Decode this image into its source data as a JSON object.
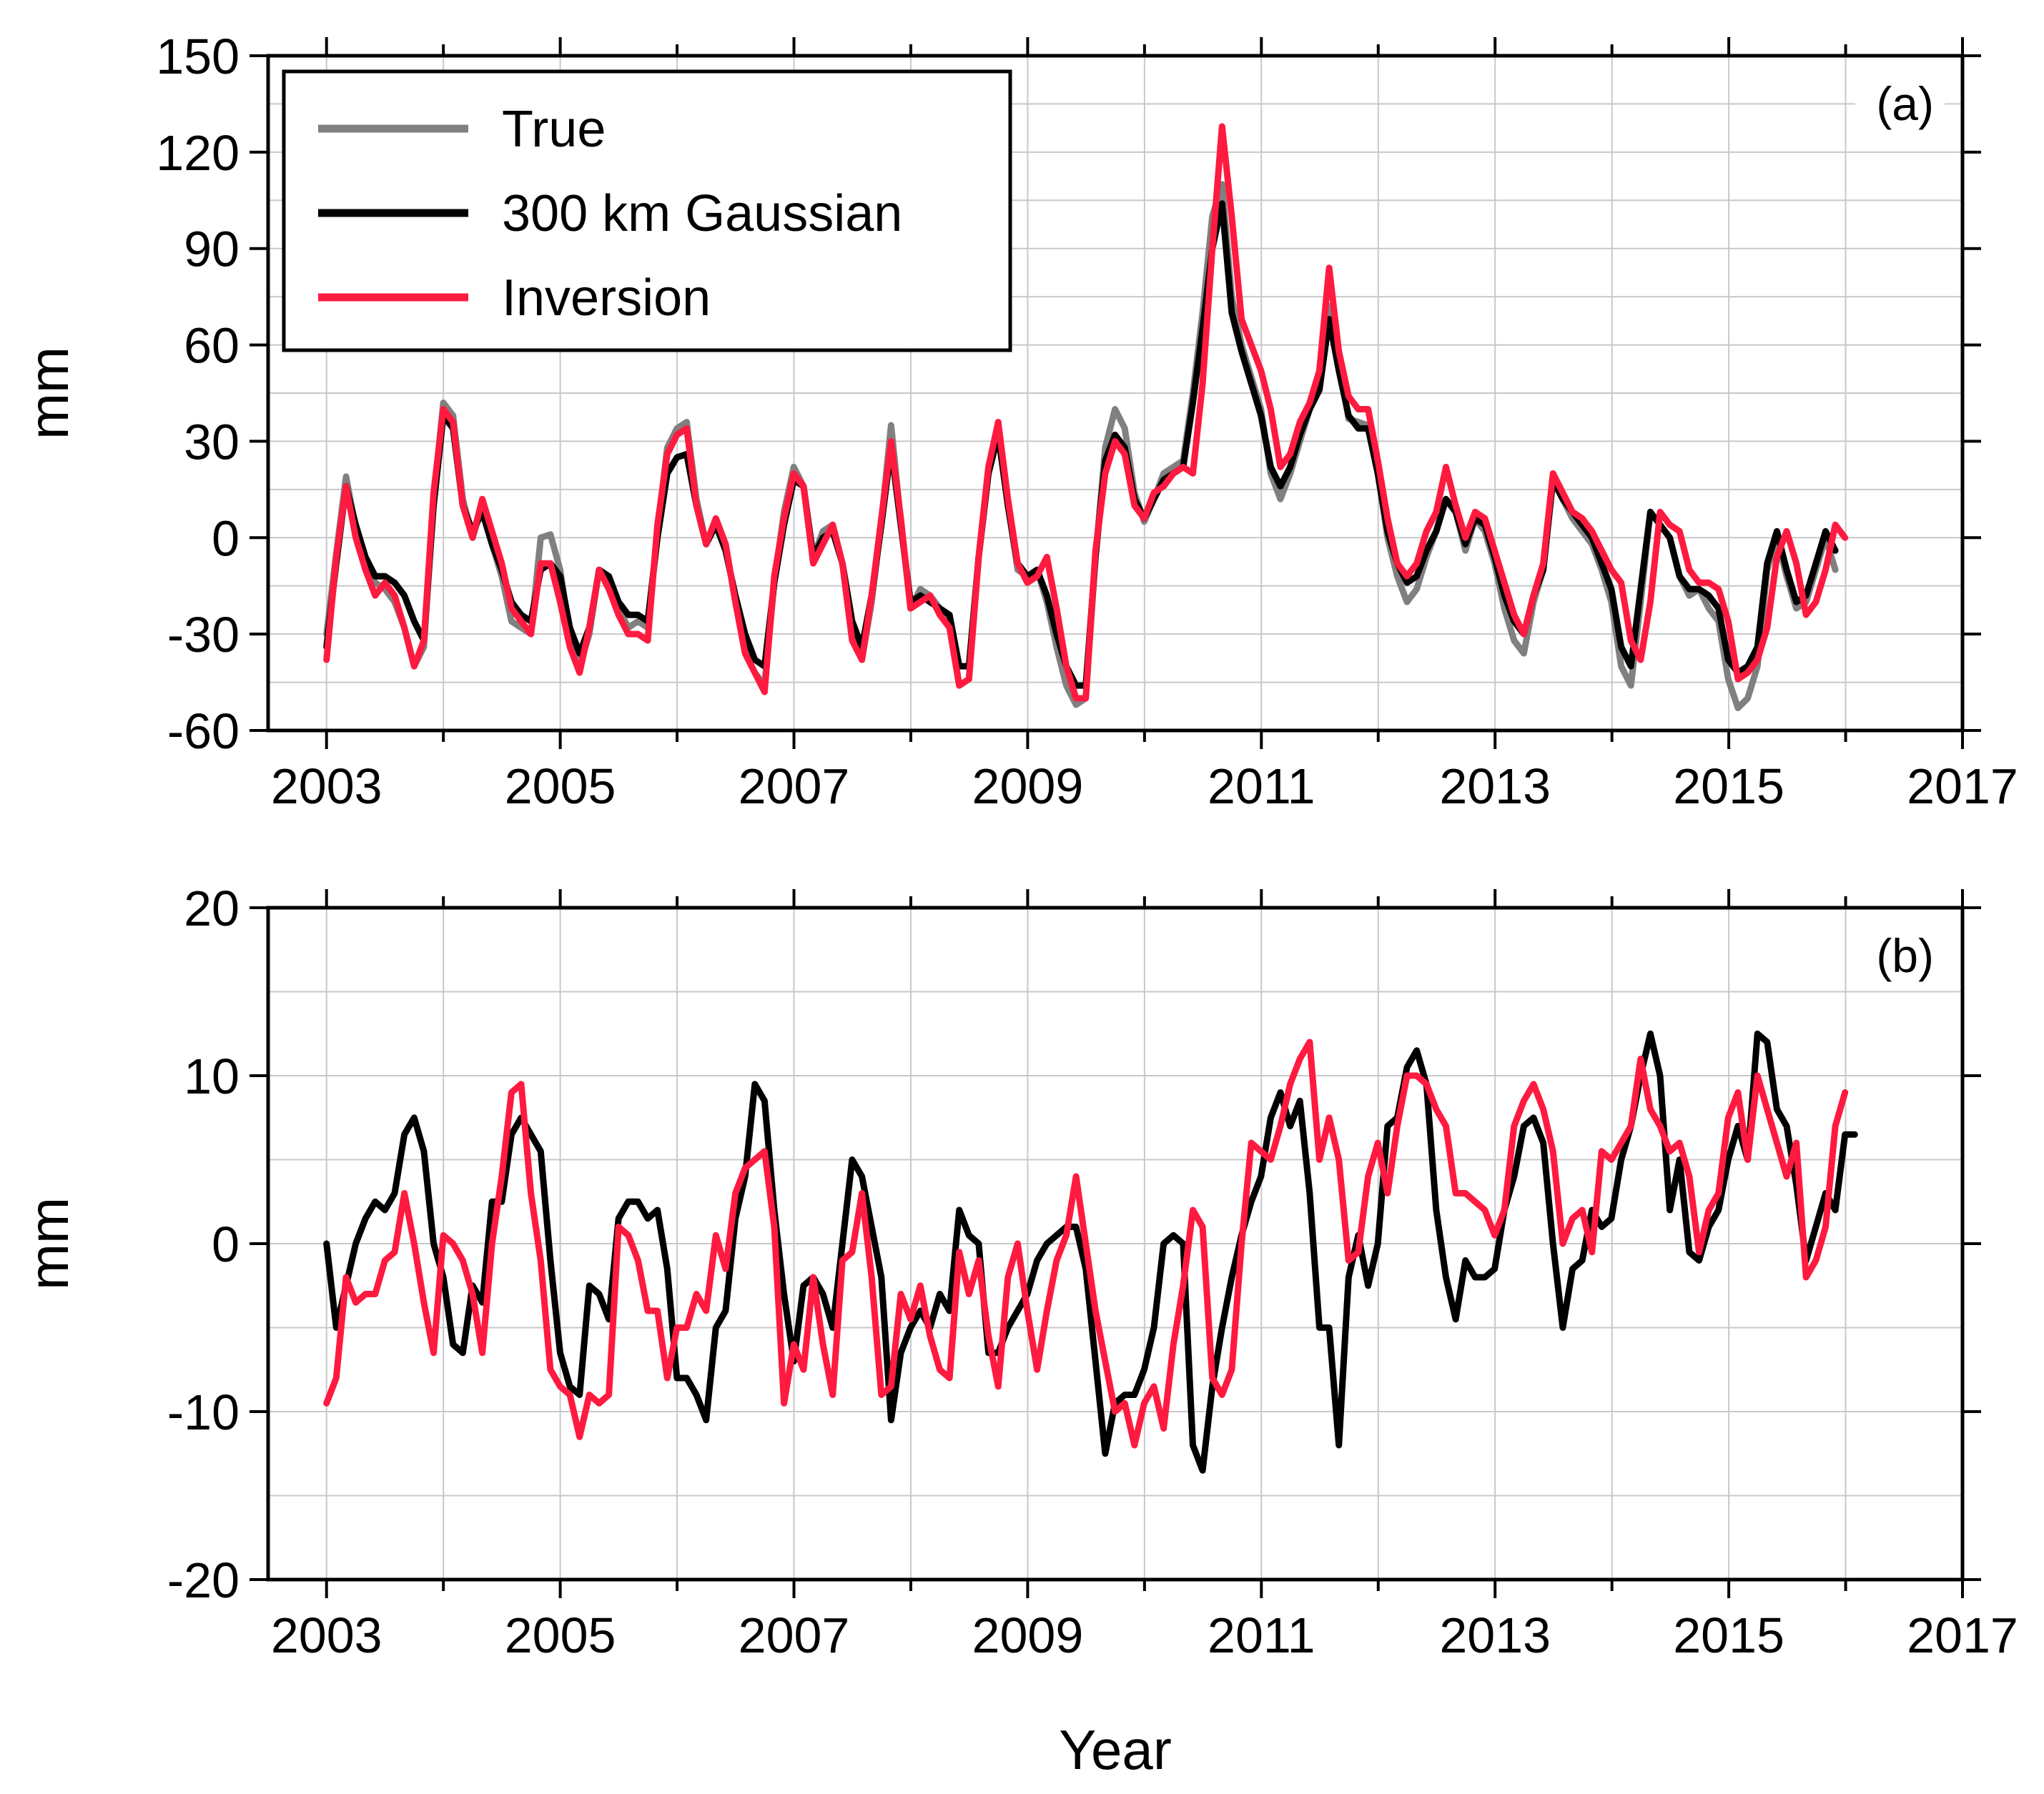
{
  "colors": {
    "true": "#808080",
    "gaussian": "#000000",
    "inversion": "#ff1a40",
    "grid": "#c8c8c8"
  },
  "chart_data": [
    {
      "type": "line",
      "panel_label": "(a)",
      "xlabel": "",
      "ylabel": "mm",
      "xlim": [
        2002.5,
        2017
      ],
      "ylim": [
        -60,
        150
      ],
      "xticks": [
        2003,
        2005,
        2007,
        2009,
        2011,
        2013,
        2015,
        2017
      ],
      "xtick_labels": [
        "2003",
        "2005",
        "2007",
        "2009",
        "2011",
        "2013",
        "2015",
        "2017"
      ],
      "yticks": [
        -60,
        -30,
        0,
        30,
        60,
        90,
        120,
        150
      ],
      "ytick_labels": [
        "-60",
        "-30",
        "0",
        "30",
        "60",
        "90",
        "120",
        "150"
      ],
      "grid": true,
      "legend_position": "top-left",
      "legend": [
        "True",
        "300 km Gaussian",
        "Inversion"
      ],
      "x_start": 2003.0,
      "x_step": 0.0833,
      "series": [
        {
          "name": "True",
          "color_key": "true",
          "values": [
            -30,
            -5,
            19,
            3,
            -8,
            -14,
            -16,
            -20,
            -28,
            -40,
            -34,
            12,
            42,
            38,
            12,
            0,
            10,
            -2,
            -12,
            -26,
            -28,
            -30,
            0,
            1,
            -10,
            -30,
            -40,
            -30,
            -10,
            -14,
            -22,
            -28,
            -26,
            -28,
            2,
            28,
            34,
            36,
            12,
            -2,
            6,
            -2,
            -20,
            -36,
            -42,
            -46,
            -14,
            8,
            22,
            16,
            -6,
            2,
            4,
            -8,
            -30,
            -38,
            -20,
            5,
            35,
            5,
            -22,
            -16,
            -18,
            -22,
            -26,
            -46,
            -44,
            -6,
            22,
            35,
            10,
            -10,
            -12,
            -10,
            -20,
            -34,
            -46,
            -52,
            -50,
            -6,
            28,
            40,
            34,
            14,
            5,
            12,
            20,
            22,
            24,
            45,
            70,
            100,
            110,
            75,
            60,
            50,
            40,
            20,
            12,
            20,
            30,
            40,
            48,
            72,
            55,
            37,
            36,
            35,
            20,
            0,
            -12,
            -20,
            -16,
            -6,
            2,
            12,
            8,
            -4,
            6,
            2,
            -8,
            -22,
            -32,
            -36,
            -20,
            -10,
            18,
            12,
            6,
            2,
            -2,
            -10,
            -20,
            -40,
            -46,
            -20,
            8,
            4,
            0,
            -12,
            -18,
            -16,
            -22,
            -26,
            -44,
            -53,
            -50,
            -40,
            -10,
            0,
            -12,
            -22,
            -20,
            -10,
            0,
            -10
          ]
        },
        {
          "name": "300 km Gaussian",
          "color_key": "gaussian",
          "values": [
            -34,
            -8,
            16,
            4,
            -6,
            -12,
            -12,
            -14,
            -18,
            -26,
            -32,
            10,
            38,
            34,
            10,
            2,
            8,
            -2,
            -10,
            -20,
            -24,
            -26,
            -10,
            -8,
            -12,
            -28,
            -36,
            -28,
            -10,
            -12,
            -20,
            -24,
            -24,
            -26,
            0,
            20,
            25,
            26,
            10,
            -2,
            4,
            -4,
            -18,
            -30,
            -38,
            -40,
            -14,
            4,
            18,
            16,
            -6,
            0,
            2,
            -8,
            -26,
            -34,
            -18,
            4,
            28,
            4,
            -20,
            -18,
            -20,
            -22,
            -24,
            -40,
            -40,
            -6,
            20,
            32,
            10,
            -8,
            -12,
            -10,
            -18,
            -30,
            -40,
            -46,
            -46,
            -6,
            24,
            32,
            28,
            12,
            6,
            12,
            18,
            20,
            22,
            42,
            65,
            90,
            104,
            70,
            58,
            48,
            38,
            22,
            16,
            22,
            32,
            40,
            46,
            68,
            52,
            38,
            34,
            34,
            20,
            2,
            -8,
            -14,
            -12,
            -4,
            2,
            12,
            8,
            -2,
            6,
            4,
            -6,
            -18,
            -26,
            -30,
            -18,
            -10,
            18,
            12,
            8,
            4,
            0,
            -8,
            -16,
            -34,
            -40,
            -16,
            8,
            4,
            0,
            -12,
            -16,
            -16,
            -18,
            -22,
            -38,
            -42,
            -40,
            -34,
            -8,
            2,
            -10,
            -20,
            -18,
            -8,
            2,
            -4
          ]
        },
        {
          "name": "Inversion",
          "color_key": "inversion",
          "values": [
            -38,
            -6,
            16,
            0,
            -10,
            -18,
            -14,
            -18,
            -28,
            -40,
            -32,
            14,
            40,
            36,
            10,
            0,
            12,
            2,
            -8,
            -22,
            -26,
            -30,
            -8,
            -8,
            -20,
            -34,
            -42,
            -28,
            -10,
            -16,
            -24,
            -30,
            -30,
            -32,
            4,
            26,
            32,
            34,
            10,
            -2,
            6,
            -2,
            -20,
            -36,
            -42,
            -48,
            -12,
            6,
            20,
            16,
            -8,
            -2,
            4,
            -8,
            -32,
            -38,
            -18,
            6,
            30,
            6,
            -22,
            -20,
            -18,
            -24,
            -28,
            -46,
            -44,
            -6,
            22,
            36,
            12,
            -8,
            -14,
            -12,
            -6,
            -22,
            -40,
            -50,
            -50,
            -4,
            20,
            30,
            26,
            10,
            6,
            14,
            16,
            20,
            22,
            20,
            48,
            90,
            128,
            100,
            68,
            60,
            52,
            40,
            22,
            26,
            36,
            42,
            52,
            84,
            58,
            44,
            40,
            40,
            24,
            6,
            -8,
            -12,
            -8,
            2,
            8,
            22,
            10,
            0,
            8,
            6,
            -4,
            -14,
            -24,
            -30,
            -18,
            -8,
            20,
            14,
            8,
            6,
            2,
            -4,
            -10,
            -14,
            -32,
            -38,
            -20,
            8,
            4,
            2,
            -10,
            -14,
            -14,
            -16,
            -26,
            -44,
            -42,
            -38,
            -28,
            -6,
            2,
            -8,
            -24,
            -20,
            -10,
            4,
            0
          ]
        }
      ]
    },
    {
      "type": "line",
      "panel_label": "(b)",
      "xlabel": "Year",
      "ylabel": "mm",
      "xlim": [
        2002.5,
        2017
      ],
      "ylim": [
        -20,
        20
      ],
      "xticks": [
        2003,
        2005,
        2007,
        2009,
        2011,
        2013,
        2015,
        2017
      ],
      "xtick_labels": [
        "2003",
        "2005",
        "2007",
        "2009",
        "2011",
        "2013",
        "2015",
        "2017"
      ],
      "yticks": [
        -20,
        -10,
        0,
        10,
        20
      ],
      "ytick_labels": [
        "-20",
        "-10",
        "0",
        "10",
        "20"
      ],
      "grid": true,
      "x_start": 2003.0,
      "x_step": 0.0833,
      "series": [
        {
          "name": "300 km Gaussian",
          "color_key": "gaussian",
          "values": [
            0,
            -5,
            -2.5,
            0,
            1.5,
            2.5,
            2,
            3,
            6.5,
            7.5,
            5.5,
            0,
            -2,
            -6,
            -6.5,
            -2.5,
            -3.5,
            2.5,
            2.5,
            6.5,
            7.5,
            6.5,
            5.5,
            -1,
            -6.5,
            -8.5,
            -9,
            -2.5,
            -3,
            -4.5,
            1.5,
            2.5,
            2.5,
            1.5,
            2,
            -1.5,
            -8,
            -8,
            -9,
            -10.5,
            -5,
            -4,
            1.5,
            4,
            9.5,
            8.5,
            2,
            -3,
            -7,
            -2.5,
            -2,
            -3,
            -5,
            0,
            5,
            4,
            1,
            -2,
            -10.5,
            -6.5,
            -5,
            -4,
            -5,
            -3,
            -4,
            2,
            0.5,
            0,
            -6.5,
            -6.5,
            -5,
            -4,
            -3,
            -1,
            0,
            0.5,
            1,
            1,
            -1.5,
            -7,
            -12.5,
            -9.5,
            -9,
            -9,
            -7.5,
            -5,
            0,
            0.5,
            0,
            -12,
            -13.5,
            -8.5,
            -5,
            -2,
            0.5,
            2.5,
            4,
            7.5,
            9,
            7,
            8.5,
            3,
            -5,
            -5,
            -12,
            -2,
            0.5,
            -2.5,
            0,
            7,
            7.5,
            10.5,
            11.5,
            9.5,
            2,
            -2,
            -4.5,
            -1,
            -2,
            -2,
            -1.5,
            2,
            4,
            7,
            7.5,
            6,
            0,
            -5,
            -1.5,
            -1,
            2,
            1,
            1.5,
            5,
            7,
            10,
            12.5,
            10,
            2,
            5,
            -0.5,
            -1,
            1,
            2,
            5,
            7,
            5,
            12.5,
            12,
            8,
            7,
            3.5,
            -1,
            1,
            3,
            2,
            6.5,
            6.5
          ]
        },
        {
          "name": "Inversion",
          "color_key": "inversion",
          "values": [
            -9.5,
            -8,
            -2,
            -3.5,
            -3,
            -3,
            -1,
            -0.5,
            3,
            0,
            -3.5,
            -6.5,
            0.5,
            0,
            -1,
            -3,
            -6.5,
            0,
            4,
            9,
            9.5,
            3,
            -1,
            -7.5,
            -8.5,
            -9,
            -11.5,
            -9,
            -9.5,
            -9,
            1,
            0.5,
            -1,
            -4,
            -4,
            -8,
            -5,
            -5,
            -3,
            -4,
            0.5,
            -1.5,
            3,
            4.5,
            5,
            5.5,
            1,
            -9.5,
            -6,
            -7.5,
            -2,
            -6,
            -9,
            -1,
            -0.5,
            3,
            -2,
            -9,
            -8.5,
            -3,
            -4.5,
            -2.5,
            -5.5,
            -7.5,
            -8,
            -0.5,
            -3,
            -1,
            -5.5,
            -8.5,
            -2,
            0,
            -4,
            -7.5,
            -4,
            -1,
            0.5,
            4,
            0,
            -4,
            -7,
            -10,
            -9.5,
            -12,
            -9.5,
            -8.5,
            -11,
            -6,
            -2.5,
            2,
            1,
            -8,
            -9,
            -7.5,
            0,
            6,
            5.5,
            5,
            7,
            9.5,
            11,
            12,
            5,
            7.5,
            5,
            -1,
            -0.5,
            4,
            6,
            3,
            7,
            10,
            10,
            9.5,
            8,
            7,
            3,
            3,
            2.5,
            2,
            0.5,
            2,
            7,
            8.5,
            9.5,
            8,
            5.5,
            0,
            1.5,
            2,
            -0.5,
            5.5,
            5,
            6,
            7,
            11,
            8,
            7,
            5.5,
            6,
            4,
            -0.5,
            2,
            3,
            7.5,
            9,
            5,
            10,
            8,
            6,
            4,
            6,
            -2,
            -1,
            1,
            7,
            9
          ]
        }
      ]
    }
  ]
}
